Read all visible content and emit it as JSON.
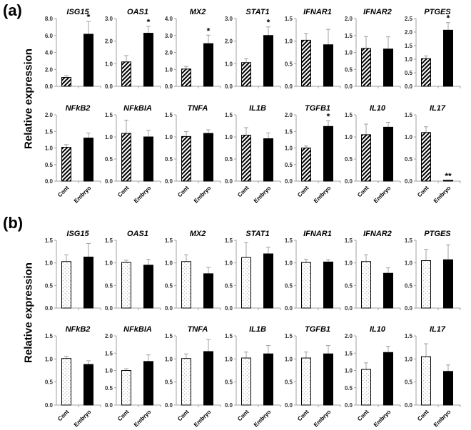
{
  "figure": {
    "panels": [
      {
        "label": "(a)",
        "ylabel": "Relative expression"
      },
      {
        "label": "(b)",
        "ylabel": "Relative expression"
      }
    ],
    "xcategories": [
      "Cont",
      "Embryo"
    ]
  },
  "colors": {
    "axis": "#a0a0a0",
    "bar_embryo": "#000000",
    "bar_outline": "#000000",
    "error_bar": "#a0a0a0",
    "text": "#000000"
  },
  "chart_data": [
    {
      "panel": "(a)",
      "type": "bar",
      "pattern_cont": "diagonal-hatch",
      "pattern_embryo": "solid-black",
      "categories": [
        "Cont",
        "Embryo"
      ],
      "ylabel": "Relative expression",
      "subplots": [
        {
          "title": "ISG15",
          "ylim": [
            0,
            8.0
          ],
          "ticks": [
            "0.0",
            "2.0",
            "4.0",
            "6.0",
            "8.0"
          ],
          "values": [
            1.05,
            6.15
          ],
          "errors": [
            0.2,
            1.5
          ],
          "sig": [
            "",
            "*"
          ]
        },
        {
          "title": "OAS1",
          "ylim": [
            0,
            3.0
          ],
          "ticks": [
            "0.0",
            "1.0",
            "2.0",
            "3.0"
          ],
          "values": [
            1.08,
            2.35
          ],
          "errors": [
            0.28,
            0.3
          ],
          "sig": [
            "",
            "*"
          ]
        },
        {
          "title": "MX2",
          "ylim": [
            0,
            4.0
          ],
          "ticks": [
            "0.0",
            "1.0",
            "2.0",
            "3.0",
            "4.0"
          ],
          "values": [
            1.02,
            2.52
          ],
          "errors": [
            0.15,
            0.5
          ],
          "sig": [
            "",
            "*"
          ]
        },
        {
          "title": "STAT1",
          "ylim": [
            0,
            3.0
          ],
          "ticks": [
            "0.0",
            "1.0",
            "2.0",
            "3.0"
          ],
          "values": [
            1.05,
            2.25
          ],
          "errors": [
            0.18,
            0.38
          ],
          "sig": [
            "",
            "*"
          ]
        },
        {
          "title": "IFNAR1",
          "ylim": [
            0,
            1.5
          ],
          "ticks": [
            "0.0",
            "0.5",
            "1.0",
            "1.5"
          ],
          "values": [
            1.02,
            0.92
          ],
          "errors": [
            0.15,
            0.34
          ],
          "sig": [
            "",
            ""
          ]
        },
        {
          "title": "IFNAR2",
          "ylim": [
            0,
            2.0
          ],
          "ticks": [
            "0.0",
            "0.5",
            "1.0",
            "1.5",
            "2.0"
          ],
          "values": [
            1.12,
            1.1
          ],
          "errors": [
            0.35,
            0.36
          ],
          "sig": [
            "",
            ""
          ]
        },
        {
          "title": "PTGES",
          "ylim": [
            0,
            2.5
          ],
          "ticks": [
            "0.0",
            "0.5",
            "1.0",
            "1.5",
            "2.0",
            "2.5"
          ],
          "values": [
            1.02,
            2.07
          ],
          "errors": [
            0.1,
            0.28
          ],
          "sig": [
            "",
            "*"
          ]
        },
        {
          "title": "NFkB2",
          "ylim": [
            0,
            2.0
          ],
          "ticks": [
            "0.0",
            "0.5",
            "1.0",
            "1.5",
            "2.0"
          ],
          "values": [
            1.02,
            1.3
          ],
          "errors": [
            0.08,
            0.15
          ],
          "sig": [
            "",
            ""
          ]
        },
        {
          "title": "NFkBIA",
          "ylim": [
            0,
            1.5
          ],
          "ticks": [
            "0.0",
            "0.5",
            "1.0",
            "1.5"
          ],
          "values": [
            1.08,
            1.0
          ],
          "errors": [
            0.3,
            0.15
          ],
          "sig": [
            "",
            ""
          ]
        },
        {
          "title": "TNFA",
          "ylim": [
            0,
            1.5
          ],
          "ticks": [
            "0.0",
            "0.5",
            "1.0",
            "1.5"
          ],
          "values": [
            1.01,
            1.08
          ],
          "errors": [
            0.11,
            0.08
          ],
          "sig": [
            "",
            ""
          ]
        },
        {
          "title": "IL1B",
          "ylim": [
            0,
            1.5
          ],
          "ticks": [
            "0.0",
            "0.5",
            "1.0",
            "1.5"
          ],
          "values": [
            1.04,
            0.96
          ],
          "errors": [
            0.17,
            0.13
          ],
          "sig": [
            "",
            ""
          ]
        },
        {
          "title": "TGFB1",
          "ylim": [
            0,
            2.0
          ],
          "ticks": [
            "0.0",
            "0.5",
            "1.0",
            "1.5",
            "2.0"
          ],
          "values": [
            1.0,
            1.65
          ],
          "errors": [
            0.06,
            0.17
          ],
          "sig": [
            "",
            "*"
          ]
        },
        {
          "title": "IL10",
          "ylim": [
            0,
            1.5
          ],
          "ticks": [
            "0.0",
            "0.5",
            "1.0",
            "1.5"
          ],
          "values": [
            1.05,
            1.22
          ],
          "errors": [
            0.24,
            0.11
          ],
          "sig": [
            "",
            ""
          ]
        },
        {
          "title": "IL17",
          "ylim": [
            0,
            1.5
          ],
          "ticks": [
            "0.0",
            "0.5",
            "1.0",
            "1.5"
          ],
          "values": [
            1.1,
            0.02
          ],
          "errors": [
            0.13,
            0.0
          ],
          "sig": [
            "",
            "**"
          ]
        }
      ]
    },
    {
      "panel": "(b)",
      "type": "bar",
      "pattern_cont": "dotted",
      "pattern_embryo": "solid-black",
      "categories": [
        "Cont",
        "Embryo"
      ],
      "ylabel": "Relative expression",
      "subplots": [
        {
          "title": "ISG15",
          "ylim": [
            0,
            1.5
          ],
          "ticks": [
            "0.0",
            "0.5",
            "1.0",
            "1.5"
          ],
          "values": [
            1.03,
            1.13
          ],
          "errors": [
            0.15,
            0.3
          ],
          "sig": [
            "",
            ""
          ]
        },
        {
          "title": "OAS1",
          "ylim": [
            0,
            1.5
          ],
          "ticks": [
            "0.0",
            "0.5",
            "1.0",
            "1.5"
          ],
          "values": [
            1.01,
            0.95
          ],
          "errors": [
            0.05,
            0.13
          ],
          "sig": [
            "",
            ""
          ]
        },
        {
          "title": "MX2",
          "ylim": [
            0,
            1.5
          ],
          "ticks": [
            "0.0",
            "0.5",
            "1.0",
            "1.5"
          ],
          "values": [
            1.03,
            0.76
          ],
          "errors": [
            0.15,
            0.14
          ],
          "sig": [
            "",
            ""
          ]
        },
        {
          "title": "STAT1",
          "ylim": [
            0,
            1.5
          ],
          "ticks": [
            "0.0",
            "0.5",
            "1.0",
            "1.5"
          ],
          "values": [
            1.12,
            1.2
          ],
          "errors": [
            0.33,
            0.15
          ],
          "sig": [
            "",
            ""
          ]
        },
        {
          "title": "IFNAR1",
          "ylim": [
            0,
            1.5
          ],
          "ticks": [
            "0.0",
            "0.5",
            "1.0",
            "1.5"
          ],
          "values": [
            1.01,
            1.02
          ],
          "errors": [
            0.07,
            0.05
          ],
          "sig": [
            "",
            ""
          ]
        },
        {
          "title": "IFNAR2",
          "ylim": [
            0,
            1.5
          ],
          "ticks": [
            "0.0",
            "0.5",
            "1.0",
            "1.5"
          ],
          "values": [
            1.03,
            0.77
          ],
          "errors": [
            0.15,
            0.12
          ],
          "sig": [
            "",
            ""
          ]
        },
        {
          "title": "PTGES",
          "ylim": [
            0,
            1.5
          ],
          "ticks": [
            "0.0",
            "0.5",
            "1.0",
            "1.5"
          ],
          "values": [
            1.05,
            1.07
          ],
          "errors": [
            0.25,
            0.33
          ],
          "sig": [
            "",
            ""
          ]
        },
        {
          "title": "NFkB2",
          "ylim": [
            0,
            1.5
          ],
          "ticks": [
            "0.0",
            "0.5",
            "1.0",
            "1.5"
          ],
          "values": [
            1.01,
            0.88
          ],
          "errors": [
            0.05,
            0.08
          ],
          "sig": [
            "",
            ""
          ]
        },
        {
          "title": "NFkBIA",
          "ylim": [
            0,
            2.0
          ],
          "ticks": [
            "0.0",
            "0.5",
            "1.0",
            "1.5",
            "2.0"
          ],
          "values": [
            1.0,
            1.26
          ],
          "errors": [
            0.05,
            0.19
          ],
          "sig": [
            "",
            ""
          ]
        },
        {
          "title": "TNFA",
          "ylim": [
            0,
            1.5
          ],
          "ticks": [
            "0.0",
            "0.5",
            "1.0",
            "1.5"
          ],
          "values": [
            1.01,
            1.16
          ],
          "errors": [
            0.1,
            0.26
          ],
          "sig": [
            "",
            ""
          ]
        },
        {
          "title": "IL1B",
          "ylim": [
            0,
            1.5
          ],
          "ticks": [
            "0.0",
            "0.5",
            "1.0",
            "1.5"
          ],
          "values": [
            1.02,
            1.11
          ],
          "errors": [
            0.13,
            0.18
          ],
          "sig": [
            "",
            ""
          ]
        },
        {
          "title": "TGFB1",
          "ylim": [
            0,
            1.5
          ],
          "ticks": [
            "0.0",
            "0.5",
            "1.0",
            "1.5"
          ],
          "values": [
            1.02,
            1.11
          ],
          "errors": [
            0.13,
            0.18
          ],
          "sig": [
            "",
            ""
          ]
        },
        {
          "title": "IL10",
          "ylim": [
            0,
            2.0
          ],
          "ticks": [
            "0.0",
            "0.5",
            "1.0",
            "1.5",
            "2.0"
          ],
          "values": [
            1.03,
            1.52
          ],
          "errors": [
            0.19,
            0.18
          ],
          "sig": [
            "",
            ""
          ]
        },
        {
          "title": "IL17",
          "ylim": [
            0,
            1.5
          ],
          "ticks": [
            "0.0",
            "0.5",
            "1.0",
            "1.5"
          ],
          "values": [
            1.05,
            0.73
          ],
          "errors": [
            0.28,
            0.14
          ],
          "sig": [
            "",
            ""
          ]
        }
      ]
    }
  ]
}
